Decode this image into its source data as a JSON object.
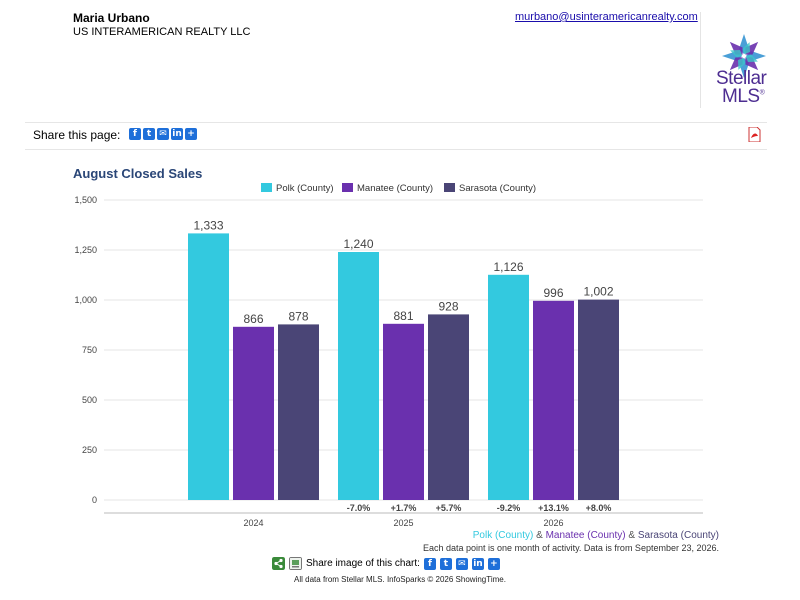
{
  "agent": {
    "name": "Maria Urbano",
    "company": "US INTERAMERICAN REALTY LLC",
    "email": "murbano@usinteramericanrealty.com"
  },
  "logo": {
    "word1": "Stellar",
    "word2": "MLS",
    "trademark": "®"
  },
  "share": {
    "label": "Share this page:",
    "icons": [
      "facebook-icon",
      "twitter-icon",
      "email-icon",
      "linkedin-icon",
      "plus-icon"
    ]
  },
  "colors": {
    "polk": "#33c9df",
    "manatee": "#6a30ae",
    "sarasota": "#4a4576",
    "title": "#2a4677"
  },
  "chart_data": {
    "type": "bar",
    "title": "August Closed Sales",
    "categories": [
      "2024",
      "2025",
      "2026"
    ],
    "series": [
      {
        "name": "Polk (County)",
        "values": [
          1333,
          1240,
          1126
        ],
        "value_labels": [
          "1,333",
          "1,240",
          "1,126"
        ],
        "changes": [
          "",
          "-7.0%",
          "-9.2%"
        ]
      },
      {
        "name": "Manatee (County)",
        "values": [
          866,
          881,
          996
        ],
        "value_labels": [
          "866",
          "881",
          "996"
        ],
        "changes": [
          "",
          "+1.7%",
          "+13.1%"
        ]
      },
      {
        "name": "Sarasota (County)",
        "values": [
          878,
          928,
          1002
        ],
        "value_labels": [
          "878",
          "928",
          "1,002"
        ],
        "changes": [
          "",
          "+5.7%",
          "+8.0%"
        ]
      }
    ],
    "yticks": [
      0,
      250,
      500,
      750,
      1000,
      1250,
      1500
    ],
    "ytick_labels": [
      "0",
      "250",
      "500",
      "750",
      "1,000",
      "1,250",
      "1,500"
    ],
    "ylim": [
      0,
      1500
    ],
    "grid": true,
    "legend_position": "top-center"
  },
  "footer": {
    "series_names": [
      "Polk (County)",
      "Manatee (County)",
      "Sarasota (County)"
    ],
    "separator": "&",
    "note": "Each data point is one month of activity. Data is from September 23, 2026.",
    "share_image_label": "Share image of this chart:",
    "credit": "All data from Stellar MLS. InfoSparks © 2026 ShowingTime."
  }
}
